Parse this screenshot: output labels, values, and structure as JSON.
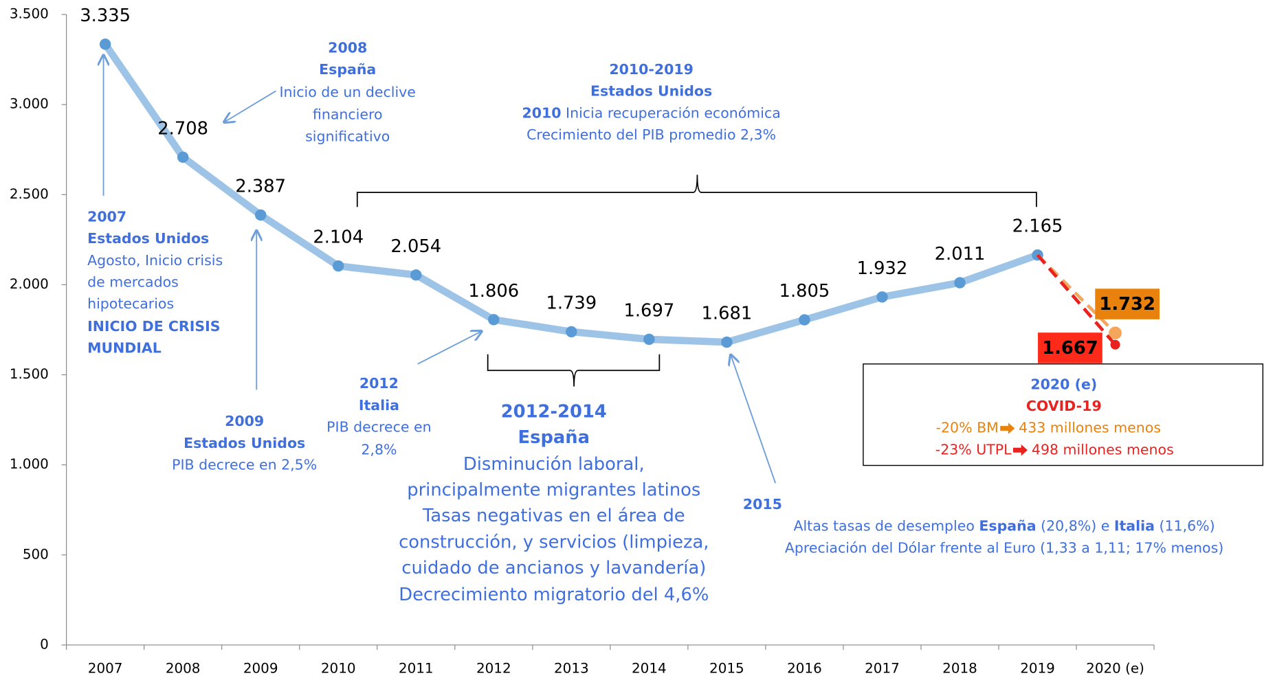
{
  "chart_data": {
    "type": "line",
    "categories": [
      "2007",
      "2008",
      "2009",
      "2010",
      "2011",
      "2012",
      "2013",
      "2014",
      "2015",
      "2016",
      "2017",
      "2018",
      "2019",
      "2020 (e)"
    ],
    "series": [
      {
        "color": "#9dc3e6",
        "marker_color": "#5b9bd5",
        "values": [
          3335,
          2708,
          2387,
          2104,
          2054,
          1806,
          1739,
          1697,
          1681,
          1805,
          1932,
          2011,
          2165,
          null
        ],
        "value_labels": [
          "3.335",
          "2.708",
          "2.387",
          "2.104",
          "2.054",
          "1.806",
          "1.739",
          "1.697",
          "1.681",
          "1.805",
          "1.932",
          "2.011",
          "2.165",
          null
        ]
      },
      {
        "color": "#f4a65a",
        "label_color": "#e8820c",
        "values": [
          null,
          null,
          null,
          null,
          null,
          null,
          null,
          null,
          null,
          null,
          null,
          null,
          null,
          1732
        ],
        "value_labels": [
          null,
          null,
          null,
          null,
          null,
          null,
          null,
          null,
          null,
          null,
          null,
          null,
          null,
          "1.732"
        ]
      },
      {
        "color": "#e8231f",
        "label_color": "#ff2a1a",
        "values": [
          null,
          null,
          null,
          null,
          null,
          null,
          null,
          null,
          null,
          null,
          null,
          null,
          null,
          1667
        ],
        "value_labels": [
          null,
          null,
          null,
          null,
          null,
          null,
          null,
          null,
          null,
          null,
          null,
          null,
          null,
          "1.667"
        ]
      }
    ],
    "ylim": [
      0,
      3500
    ],
    "yticks": [
      0,
      500,
      {
        "value": 1000,
        "label": "1.000"
      },
      {
        "value": 1500,
        "label": "1.500"
      },
      {
        "value": 2000,
        "label": "2.000"
      },
      {
        "value": 2500,
        "label": "2.500"
      },
      {
        "value": 3000,
        "label": "3.000"
      },
      {
        "value": 3500,
        "label": "3.500"
      }
    ],
    "annotations": {
      "a2007": [
        "2007",
        "Estados Unidos",
        "Agosto, Inicio crisis",
        "de mercados",
        "hipotecarios",
        "INICIO DE CRISIS",
        "MUNDIAL"
      ],
      "a2008": [
        "2008",
        "España",
        "Inicio de un declive",
        "financiero",
        "significativo"
      ],
      "a2009": [
        "2009",
        "Estados Unidos",
        "PIB decrece en 2,5%"
      ],
      "a2010_2019": [
        "2010-2019",
        "Estados Unidos",
        [
          "2010",
          " Inicia recuperación económica"
        ],
        "Crecimiento del PIB promedio 2,3%"
      ],
      "a2012": [
        "2012",
        "Italia",
        "PIB decrece en",
        "2,8%"
      ],
      "a2012_2014": [
        "2012-2014",
        "España",
        "Disminución laboral,",
        "principalmente migrantes latinos",
        "Tasas negativas en el área de",
        "construcción, y servicios (limpieza,",
        "cuidado de ancianos y lavandería)",
        "Decrecimiento migratorio del 4,6%"
      ],
      "a2015": [
        "2015",
        [
          "Altas tasas de desempleo ",
          "España",
          " (20,8%) e ",
          "Italia",
          " (11,6%)"
        ],
        "Apreciación del Dólar frente al Euro (1,33 a 1,11; 17% menos)"
      ],
      "a2020": [
        "2020 (e)",
        "COVID-19",
        [
          "-20% BM",
          "433 millones menos"
        ],
        [
          "-23% UTPL",
          "498  millones menos"
        ]
      ]
    }
  }
}
